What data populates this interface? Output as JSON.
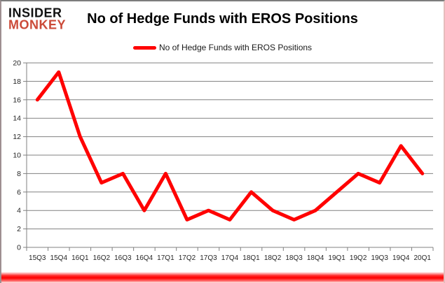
{
  "brand": {
    "line1": "INSIDER",
    "line2": "MONKEY"
  },
  "header": {
    "title": "No of Hedge Funds with EROS Positions"
  },
  "legend": {
    "label": "No of Hedge Funds with EROS Positions",
    "swatch_color": "#ff0000"
  },
  "chart_data": {
    "type": "line",
    "title": "No of Hedge Funds with EROS Positions",
    "series_name": "No of Hedge Funds with EROS Positions",
    "categories": [
      "15Q3",
      "15Q4",
      "16Q1",
      "16Q2",
      "16Q3",
      "16Q4",
      "17Q1",
      "17Q2",
      "17Q3",
      "17Q4",
      "18Q1",
      "18Q2",
      "18Q3",
      "18Q4",
      "19Q1",
      "19Q2",
      "19Q3",
      "19Q4",
      "20Q1"
    ],
    "values": [
      16,
      19,
      12,
      7,
      8,
      4,
      8,
      3,
      4,
      3,
      6,
      4,
      3,
      4,
      6,
      8,
      7,
      11,
      8
    ],
    "xlabel": "",
    "ylabel": "",
    "ylim": [
      0,
      20
    ],
    "ytick_step": 2,
    "ytick_labels": [
      "0",
      "2",
      "4",
      "6",
      "8",
      "10",
      "12",
      "14",
      "16",
      "18",
      "20"
    ],
    "grid": true,
    "legend_position": "top-center",
    "line_color": "#ff0000",
    "grid_color": "#808080",
    "axis_text_color": "#262626"
  },
  "colors": {
    "accent_red": "#ff0000",
    "brand_red": "#cb4a38",
    "grid_gray": "#808080",
    "text_black": "#1a1a1a"
  }
}
